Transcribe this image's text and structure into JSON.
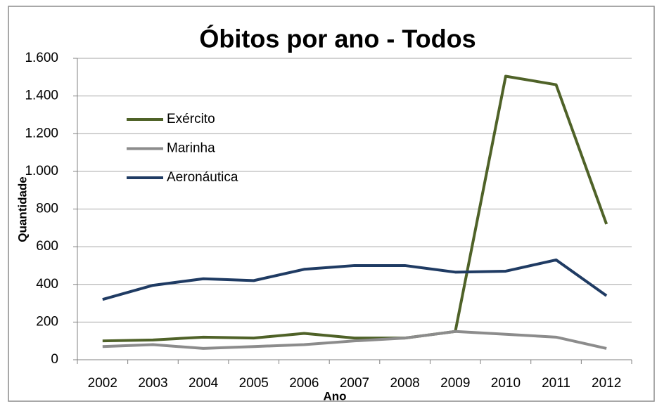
{
  "chart_data": {
    "type": "line",
    "title": "Óbitos por ano - Todos",
    "x_label": "Ano",
    "y_label": "Quantidade",
    "categories": [
      "2002",
      "2003",
      "2004",
      "2005",
      "2006",
      "2007",
      "2008",
      "2009",
      "2010",
      "2011",
      "2012"
    ],
    "series": [
      {
        "name": "Exército",
        "color": "#4f6228",
        "values": [
          100,
          105,
          120,
          115,
          140,
          115,
          115,
          150,
          1505,
          1460,
          720
        ]
      },
      {
        "name": "Marinha",
        "color": "#8c8c8c",
        "values": [
          70,
          80,
          60,
          70,
          80,
          100,
          115,
          150,
          135,
          120,
          60
        ]
      },
      {
        "name": "Aeronáutica",
        "color": "#1f3b63",
        "values": [
          320,
          395,
          430,
          420,
          480,
          500,
          500,
          465,
          470,
          530,
          340
        ]
      }
    ],
    "ylim": [
      0,
      1600
    ],
    "yticks": [
      0,
      200,
      400,
      600,
      800,
      {
        "value": 1000,
        "label": "1.000"
      },
      {
        "value": 1200,
        "label": "1.200"
      },
      {
        "value": 1400,
        "label": "1.400"
      },
      {
        "value": 1600,
        "label": "1.600"
      }
    ],
    "grid": true,
    "legend": "upper left"
  }
}
